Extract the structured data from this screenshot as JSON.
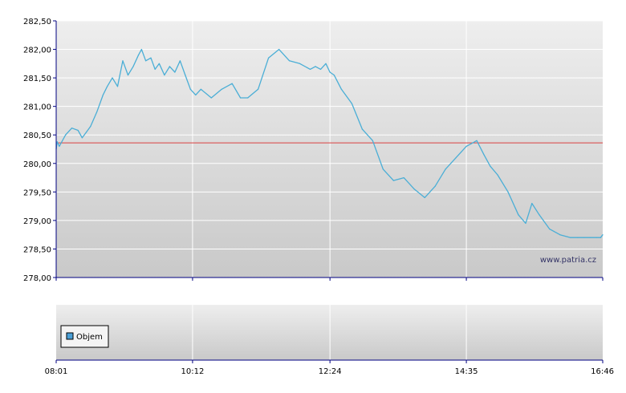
{
  "chart_data": {
    "type": "line",
    "series": [
      {
        "color": "#4aaed6",
        "x": [
          "08:01",
          "08:02",
          "08:04",
          "08:10",
          "08:16",
          "08:22",
          "08:26",
          "08:30",
          "08:34",
          "08:40",
          "08:46",
          "08:50",
          "08:55",
          "09:00",
          "09:05",
          "09:10",
          "09:15",
          "09:20",
          "09:23",
          "09:27",
          "09:32",
          "09:36",
          "09:40",
          "09:45",
          "09:50",
          "09:55",
          "10:00",
          "10:05",
          "10:10",
          "10:15",
          "10:20",
          "10:30",
          "10:40",
          "10:50",
          "10:58",
          "11:05",
          "11:15",
          "11:25",
          "11:35",
          "11:45",
          "11:55",
          "12:05",
          "12:10",
          "12:15",
          "12:20",
          "12:24",
          "12:28",
          "12:35",
          "12:45",
          "12:55",
          "13:05",
          "13:15",
          "13:25",
          "13:35",
          "13:45",
          "13:55",
          "14:05",
          "14:15",
          "14:25",
          "14:30",
          "14:35",
          "14:40",
          "14:45",
          "14:52",
          "14:58",
          "15:05",
          "15:15",
          "15:25",
          "15:32",
          "15:38",
          "15:45",
          "15:55",
          "16:05",
          "16:15",
          "16:22",
          "16:28",
          "16:34",
          "16:40",
          "16:44",
          "16:46"
        ],
        "y": [
          280.25,
          280.38,
          280.3,
          280.5,
          280.62,
          280.58,
          280.45,
          280.55,
          280.65,
          280.9,
          281.2,
          281.35,
          281.5,
          281.35,
          281.8,
          281.55,
          281.7,
          281.9,
          282.0,
          281.8,
          281.85,
          281.65,
          281.75,
          281.55,
          281.7,
          281.6,
          281.8,
          281.55,
          281.3,
          281.2,
          281.3,
          281.15,
          281.3,
          281.4,
          281.15,
          281.15,
          281.3,
          281.85,
          282.0,
          281.8,
          281.75,
          281.65,
          281.7,
          281.65,
          281.75,
          281.6,
          281.55,
          281.3,
          281.05,
          280.6,
          280.4,
          279.9,
          279.7,
          279.75,
          279.55,
          279.4,
          279.6,
          279.9,
          280.1,
          280.2,
          280.3,
          280.35,
          280.4,
          280.15,
          279.95,
          279.8,
          279.5,
          279.1,
          278.95,
          279.3,
          279.1,
          278.85,
          278.75,
          278.7,
          278.7,
          278.7,
          278.7,
          278.7,
          278.7,
          278.75
        ]
      }
    ],
    "reference_line": {
      "y": 280.36,
      "color": "#d94040"
    },
    "ylim": [
      278.0,
      282.5
    ],
    "yticks": [
      "278,00",
      "278,50",
      "279,00",
      "279,50",
      "280,00",
      "280,50",
      "281,00",
      "281,50",
      "282,00",
      "282,50"
    ],
    "xticks": [
      "08:01",
      "10:12",
      "12:24",
      "14:35",
      "16:46"
    ],
    "legend": {
      "label": "Objem",
      "color": "#4a9fd6"
    },
    "watermark": "www.patria.cz",
    "grid": true
  }
}
